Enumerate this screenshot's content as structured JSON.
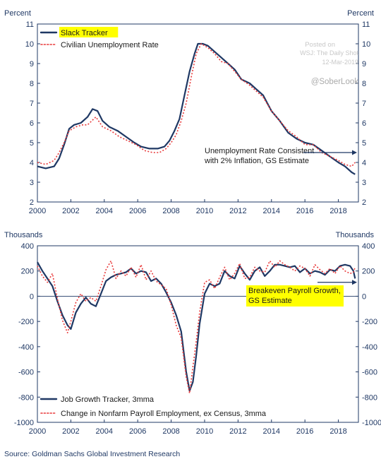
{
  "watermark": {
    "posted_on": "Posted on",
    "outlet": "WSJ: The Daily Shot",
    "date": "12-Mar-2019",
    "handle": "@SoberLook"
  },
  "source": "Source: Goldman Sachs Global Investment Research",
  "colors": {
    "axis_text": "#1f3864",
    "series_solid": "#1f3864",
    "series_dotted": "#e8393a",
    "highlight": "#ffff00",
    "grid": "#1f3864"
  },
  "chart_data": [
    {
      "type": "line",
      "left_unit_label": "Percent",
      "right_unit_label": "Percent",
      "x_ticks": [
        "2000",
        "2002",
        "2004",
        "2006",
        "2008",
        "2010",
        "2012",
        "2014",
        "2016",
        "2018"
      ],
      "xlim": [
        2000,
        2019.2
      ],
      "y_ticks": [
        "11",
        "10",
        "9",
        "8",
        "7",
        "6",
        "5",
        "4",
        "3",
        "2"
      ],
      "ylim": [
        2,
        11
      ],
      "legend": [
        {
          "label": "Slack Tracker",
          "style": "solid",
          "highlighted": true
        },
        {
          "label": "Civilian Unemployment Rate",
          "style": "dotted",
          "highlighted": false
        }
      ],
      "annotation": {
        "lines": [
          "Unemployment Rate Consistent",
          "with 2% Inflation, GS Estimate"
        ],
        "value": 4.5
      },
      "series": [
        {
          "name": "Slack Tracker",
          "style": "solid",
          "x": [
            2000.0,
            2000.5,
            2001.0,
            2001.3,
            2001.6,
            2001.9,
            2002.2,
            2002.6,
            2003.0,
            2003.3,
            2003.6,
            2003.9,
            2004.3,
            2004.8,
            2005.3,
            2005.8,
            2006.2,
            2006.7,
            2007.2,
            2007.6,
            2007.9,
            2008.2,
            2008.5,
            2008.8,
            2009.1,
            2009.4,
            2009.6,
            2009.9,
            2010.2,
            2010.6,
            2011.0,
            2011.4,
            2011.8,
            2012.2,
            2012.7,
            2013.1,
            2013.5,
            2014.0,
            2014.5,
            2015.0,
            2015.5,
            2016.0,
            2016.5,
            2017.0,
            2017.5,
            2018.0,
            2018.4,
            2018.8,
            2019.0
          ],
          "y": [
            3.8,
            3.7,
            3.8,
            4.2,
            4.9,
            5.7,
            5.9,
            6.0,
            6.3,
            6.7,
            6.6,
            6.1,
            5.8,
            5.6,
            5.3,
            5.0,
            4.8,
            4.7,
            4.7,
            4.8,
            5.1,
            5.6,
            6.2,
            7.4,
            8.6,
            9.5,
            10.0,
            10.0,
            9.9,
            9.6,
            9.3,
            9.0,
            8.7,
            8.2,
            8.0,
            7.7,
            7.4,
            6.6,
            6.1,
            5.5,
            5.2,
            5.0,
            4.9,
            4.6,
            4.3,
            4.0,
            3.8,
            3.5,
            3.4
          ]
        },
        {
          "name": "Civilian Unemployment Rate",
          "style": "dotted",
          "x": [
            2000.0,
            2000.5,
            2001.0,
            2001.3,
            2001.6,
            2001.9,
            2002.3,
            2002.7,
            2003.0,
            2003.5,
            2003.9,
            2004.4,
            2004.9,
            2005.4,
            2005.9,
            2006.4,
            2006.9,
            2007.3,
            2007.7,
            2008.0,
            2008.3,
            2008.6,
            2008.9,
            2009.2,
            2009.5,
            2009.8,
            2010.2,
            2010.6,
            2011.0,
            2011.4,
            2011.8,
            2012.2,
            2012.7,
            2013.1,
            2013.5,
            2014.0,
            2014.5,
            2015.0,
            2015.5,
            2016.0,
            2016.5,
            2017.0,
            2017.5,
            2018.0,
            2018.4,
            2018.8,
            2019.0
          ],
          "y": [
            4.0,
            3.9,
            4.1,
            4.5,
            5.0,
            5.6,
            5.8,
            5.9,
            5.9,
            6.3,
            5.8,
            5.6,
            5.3,
            5.1,
            4.9,
            4.6,
            4.5,
            4.5,
            4.7,
            5.0,
            5.4,
            6.1,
            7.0,
            8.3,
            9.5,
            10.0,
            9.8,
            9.5,
            9.1,
            9.0,
            8.6,
            8.2,
            7.9,
            7.6,
            7.3,
            6.6,
            6.1,
            5.6,
            5.3,
            4.9,
            4.9,
            4.5,
            4.3,
            4.1,
            3.9,
            3.8,
            4.0
          ]
        }
      ]
    },
    {
      "type": "line",
      "left_unit_label": "Thousands",
      "right_unit_label": "Thousands",
      "x_ticks": [
        "2000",
        "2002",
        "2004",
        "2006",
        "2008",
        "2010",
        "2012",
        "2014",
        "2016",
        "2018"
      ],
      "xlim": [
        2000,
        2019.2
      ],
      "y_ticks": [
        "400",
        "200",
        "0",
        "-200",
        "-400",
        "-600",
        "-800",
        "-1000"
      ],
      "ylim": [
        -1000,
        400
      ],
      "legend": [
        {
          "label": "Job Growth Tracker, 3mma",
          "style": "solid",
          "highlighted": false
        },
        {
          "label": "Change in Nonfarm Payroll Employment, ex Census, 3mma",
          "style": "dotted",
          "highlighted": false
        }
      ],
      "annotation": {
        "lines": [
          "Breakeven Payroll Growth,",
          "GS Estimate"
        ],
        "value": 110
      },
      "series": [
        {
          "name": "Job Growth Tracker, 3mma",
          "style": "solid",
          "x": [
            2000.0,
            2000.3,
            2000.6,
            2000.9,
            2001.2,
            2001.5,
            2001.8,
            2002.0,
            2002.3,
            2002.6,
            2002.9,
            2003.2,
            2003.5,
            2003.8,
            2004.1,
            2004.4,
            2004.7,
            2005.0,
            2005.3,
            2005.6,
            2005.9,
            2006.2,
            2006.5,
            2006.8,
            2007.1,
            2007.4,
            2007.7,
            2008.0,
            2008.3,
            2008.6,
            2008.9,
            2009.1,
            2009.3,
            2009.5,
            2009.7,
            2010.0,
            2010.3,
            2010.6,
            2010.9,
            2011.2,
            2011.5,
            2011.8,
            2012.1,
            2012.4,
            2012.7,
            2013.0,
            2013.3,
            2013.6,
            2013.9,
            2014.2,
            2014.5,
            2014.8,
            2015.1,
            2015.4,
            2015.7,
            2016.0,
            2016.3,
            2016.6,
            2016.9,
            2017.2,
            2017.5,
            2017.8,
            2018.1,
            2018.4,
            2018.7,
            2018.9,
            2019.0
          ],
          "y": [
            270,
            200,
            140,
            80,
            -40,
            -150,
            -230,
            -260,
            -130,
            -60,
            -10,
            -60,
            -80,
            20,
            120,
            150,
            170,
            180,
            190,
            220,
            180,
            200,
            190,
            120,
            140,
            100,
            30,
            -50,
            -150,
            -280,
            -600,
            -750,
            -680,
            -470,
            -220,
            20,
            100,
            80,
            100,
            200,
            160,
            140,
            240,
            180,
            130,
            200,
            230,
            160,
            200,
            250,
            250,
            240,
            230,
            240,
            190,
            220,
            180,
            200,
            190,
            170,
            210,
            200,
            240,
            250,
            240,
            200,
            140
          ]
        },
        {
          "name": "Change in Nonfarm Payroll Employment, ex Census, 3mma",
          "style": "dotted",
          "x": [
            2000.0,
            2000.3,
            2000.6,
            2000.9,
            2001.2,
            2001.5,
            2001.8,
            2002.0,
            2002.3,
            2002.6,
            2002.9,
            2003.2,
            2003.5,
            2003.8,
            2004.1,
            2004.4,
            2004.7,
            2005.0,
            2005.3,
            2005.6,
            2005.9,
            2006.2,
            2006.5,
            2006.8,
            2007.1,
            2007.4,
            2007.7,
            2008.0,
            2008.3,
            2008.6,
            2008.9,
            2009.1,
            2009.3,
            2009.5,
            2009.7,
            2010.0,
            2010.3,
            2010.6,
            2010.9,
            2011.2,
            2011.5,
            2011.8,
            2012.1,
            2012.4,
            2012.7,
            2013.0,
            2013.3,
            2013.6,
            2013.9,
            2014.2,
            2014.5,
            2014.8,
            2015.1,
            2015.4,
            2015.7,
            2016.0,
            2016.3,
            2016.6,
            2016.9,
            2017.2,
            2017.5,
            2017.8,
            2018.1,
            2018.4,
            2018.7,
            2018.9,
            2019.0
          ],
          "y": [
            240,
            160,
            110,
            180,
            -20,
            -190,
            -290,
            -200,
            -50,
            20,
            -40,
            -10,
            -40,
            80,
            210,
            280,
            140,
            200,
            160,
            230,
            150,
            250,
            130,
            200,
            120,
            90,
            60,
            -70,
            -230,
            -330,
            -640,
            -770,
            -560,
            -360,
            -130,
            110,
            130,
            60,
            150,
            230,
            130,
            180,
            260,
            140,
            150,
            230,
            200,
            190,
            280,
            230,
            280,
            250,
            230,
            200,
            240,
            220,
            160,
            250,
            210,
            180,
            220,
            180,
            240,
            200,
            180,
            190,
            230
          ]
        }
      ]
    }
  ]
}
